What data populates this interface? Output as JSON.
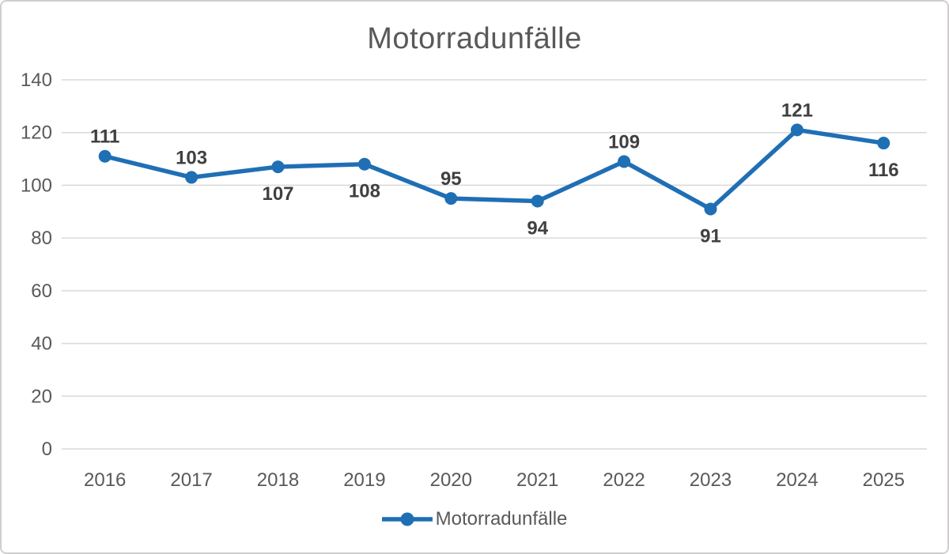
{
  "chart_data": {
    "type": "line",
    "title": "Motorradunfälle",
    "categories": [
      "2016",
      "2017",
      "2018",
      "2019",
      "2020",
      "2021",
      "2022",
      "2023",
      "2024",
      "2025"
    ],
    "series": [
      {
        "name": "Motorradunfälle",
        "values": [
          111,
          103,
          107,
          108,
          95,
          94,
          109,
          91,
          121,
          116
        ]
      }
    ],
    "xlabel": "",
    "ylabel": "",
    "ylim": [
      0,
      140
    ],
    "ytick_step": 20,
    "yticks": [
      0,
      20,
      40,
      60,
      80,
      100,
      120,
      140
    ],
    "grid": "horizontal",
    "legend_position": "bottom",
    "data_labels_visible": true,
    "label_positions": [
      "above",
      "above",
      "below",
      "below",
      "above",
      "below",
      "above",
      "below",
      "above",
      "below"
    ],
    "colors": {
      "line": "#1f6fb5",
      "marker": "#1f6fb5",
      "gridline": "#d9d9d9",
      "axis_text": "#595959",
      "data_label": "#404040",
      "title": "#595959",
      "border": "#d0cece",
      "background": "#ffffff"
    }
  },
  "legend": {
    "label": "Motorradunfälle"
  }
}
